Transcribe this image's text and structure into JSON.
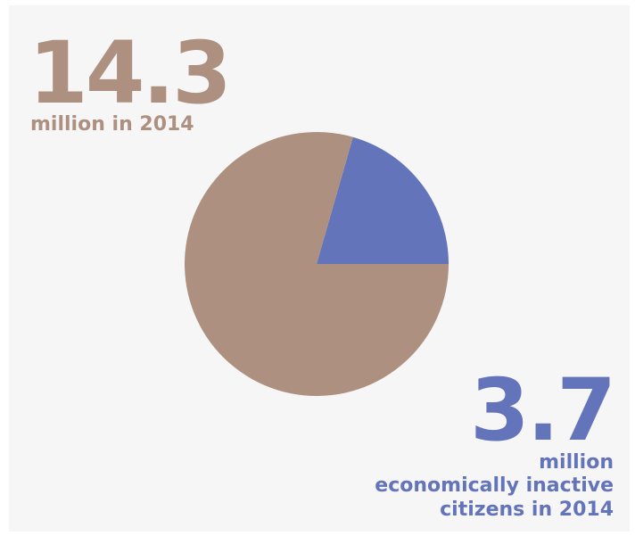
{
  "colors": {
    "background": "#f6f6f6",
    "primary": "#ae9080",
    "secondary": "#6374bb"
  },
  "labels": {
    "primary_value": "14.3",
    "primary_caption": "million in 2014",
    "secondary_value": "3.7",
    "secondary_caption_line1": "million",
    "secondary_caption_line2": "economically inactive",
    "secondary_caption_line3": "citizens in 2014"
  },
  "chart_data": {
    "type": "pie",
    "start_angle_deg": 0,
    "direction": "counterclockwise",
    "slices": [
      {
        "value": 3.7,
        "color": "#6374bb"
      },
      {
        "value": 14.3,
        "color": "#ae9080"
      }
    ]
  }
}
